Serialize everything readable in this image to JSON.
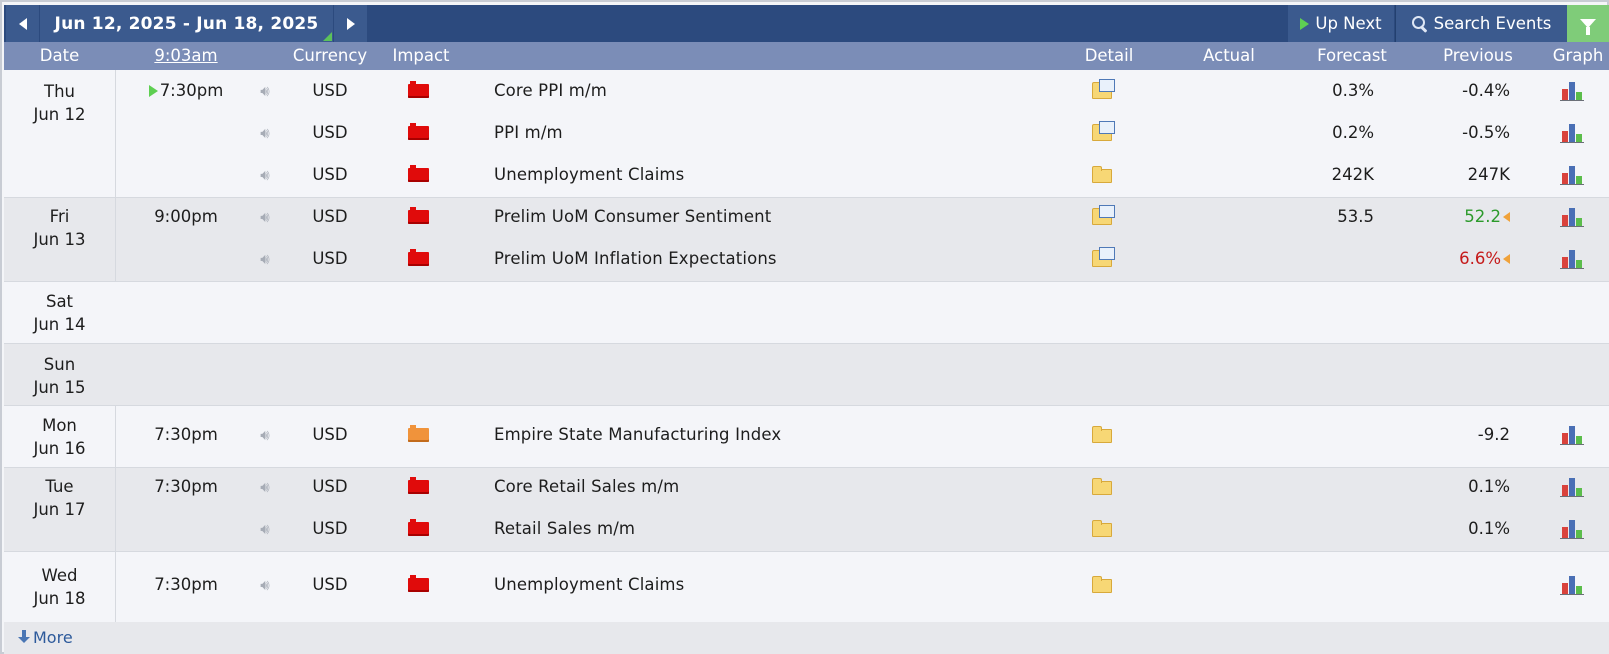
{
  "toolbar": {
    "date_range": "Jun 12, 2025 - Jun 18, 2025",
    "up_next": "Up Next",
    "search_events": "Search Events"
  },
  "header": {
    "date": "Date",
    "time": "9:03am",
    "currency": "Currency",
    "impact": "Impact",
    "detail": "Detail",
    "actual": "Actual",
    "forecast": "Forecast",
    "previous": "Previous",
    "graph": "Graph"
  },
  "colors": {
    "toolbar_bg": "#2c4a7e",
    "header_bg": "#7b8db7",
    "filter_green": "#7fcc79",
    "impact_high": "#e00b0b",
    "impact_medium": "#f0933b",
    "better_than_expected": "#2c9a2b",
    "worse_than_expected": "#c51a1a"
  },
  "days": [
    {
      "weekday": "Thu",
      "date": "Jun 12",
      "events": [
        {
          "time": "7:30pm",
          "currency": "USD",
          "impact": "high",
          "title": "Core PPI m/m",
          "detail_icon": "folder-doc-icon",
          "actual": "",
          "forecast": "0.3%",
          "previous": "-0.4%"
        },
        {
          "time": "",
          "currency": "USD",
          "impact": "high",
          "title": "PPI m/m",
          "detail_icon": "folder-doc-icon",
          "actual": "",
          "forecast": "0.2%",
          "previous": "-0.5%"
        },
        {
          "time": "",
          "currency": "USD",
          "impact": "high",
          "title": "Unemployment Claims",
          "detail_icon": "folder-icon",
          "actual": "",
          "forecast": "242K",
          "previous": "247K"
        }
      ]
    },
    {
      "weekday": "Fri",
      "date": "Jun 13",
      "events": [
        {
          "time": "9:00pm",
          "currency": "USD",
          "impact": "high",
          "title": "Prelim UoM Consumer Sentiment",
          "detail_icon": "folder-doc-icon",
          "actual": "",
          "forecast": "53.5",
          "previous": "52.2"
        },
        {
          "time": "",
          "currency": "USD",
          "impact": "high",
          "title": "Prelim UoM Inflation Expectations",
          "detail_icon": "folder-doc-icon",
          "actual": "",
          "forecast": "",
          "previous": "6.6%"
        }
      ]
    },
    {
      "weekday": "Sat",
      "date": "Jun 14",
      "events": []
    },
    {
      "weekday": "Sun",
      "date": "Jun 15",
      "events": []
    },
    {
      "weekday": "Mon",
      "date": "Jun 16",
      "events": [
        {
          "time": "7:30pm",
          "currency": "USD",
          "impact": "medium",
          "title": "Empire State Manufacturing Index",
          "detail_icon": "folder-icon",
          "actual": "",
          "forecast": "",
          "previous": "-9.2"
        }
      ]
    },
    {
      "weekday": "Tue",
      "date": "Jun 17",
      "events": [
        {
          "time": "7:30pm",
          "currency": "USD",
          "impact": "high",
          "title": "Core Retail Sales m/m",
          "detail_icon": "folder-icon",
          "actual": "",
          "forecast": "",
          "previous": "0.1%"
        },
        {
          "time": "",
          "currency": "USD",
          "impact": "high",
          "title": "Retail Sales m/m",
          "detail_icon": "folder-icon",
          "actual": "",
          "forecast": "",
          "previous": "0.1%"
        }
      ]
    },
    {
      "weekday": "Wed",
      "date": "Jun 18",
      "events": [
        {
          "time": "7:30pm",
          "currency": "USD",
          "impact": "high",
          "title": "Unemployment Claims",
          "detail_icon": "folder-icon",
          "actual": "",
          "forecast": "",
          "previous": ""
        }
      ]
    }
  ],
  "footer": {
    "more": "More"
  }
}
